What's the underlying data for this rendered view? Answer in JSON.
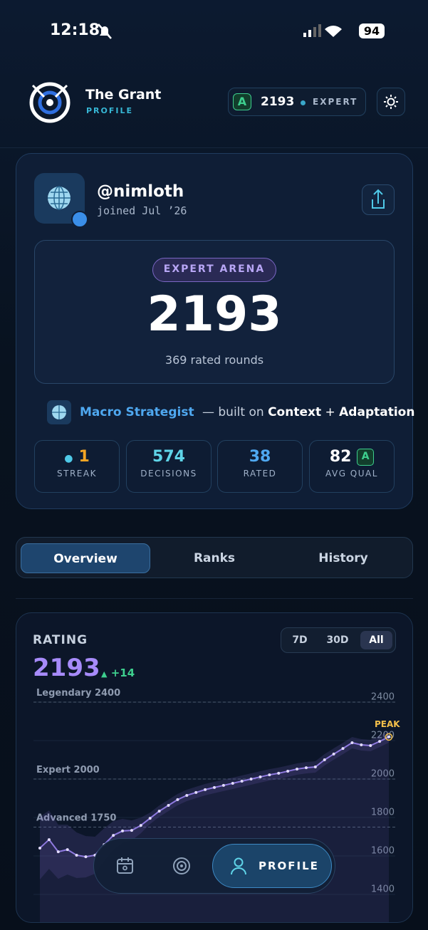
{
  "status_bar": {
    "time": "12:18",
    "battery": "94"
  },
  "header": {
    "title": "The Grant",
    "subtitle": "PROFILE",
    "grade": "A",
    "rating": "2193",
    "tier": "EXPERT"
  },
  "profile": {
    "handle": "@nimloth",
    "joined": "joined Jul ’26",
    "arena": "EXPERT ARENA",
    "rating": "2193",
    "rounds": "369 rated rounds",
    "archetype": "Macro Strategist",
    "built_on": "— built on",
    "trait_1": "Context",
    "plus": "+",
    "trait_2": "Adaptation",
    "stats": [
      {
        "value": "1",
        "label": "STREAK"
      },
      {
        "value": "574",
        "label": "DECISIONS"
      },
      {
        "value": "38",
        "label": "RATED"
      },
      {
        "value": "82",
        "grade": "A",
        "label": "AVG QUAL"
      }
    ]
  },
  "tabs": [
    "Overview",
    "Ranks",
    "History"
  ],
  "rating_chart": {
    "title": "RATING",
    "ranges": [
      "7D",
      "30D",
      "All"
    ],
    "current": "2193",
    "change": "+14",
    "peak_label": "PEAK",
    "values": [
      1615,
      1659,
      1596,
      1607,
      1578,
      1570,
      1578,
      1633,
      1681,
      1704,
      1707,
      1733,
      1770,
      1807,
      1837,
      1867,
      1889,
      1904,
      1919,
      1930,
      1941,
      1952,
      1963,
      1974,
      1985,
      1996,
      2004,
      2015,
      2026,
      2033,
      2037,
      2074,
      2104,
      2133,
      2163,
      2152,
      2148,
      2170,
      2193
    ],
    "ylim": [
      1400,
      2400
    ],
    "yticks": [
      1400,
      1600,
      1800,
      2000,
      2200,
      2400
    ],
    "reference_lines": [
      {
        "value": 2400,
        "label": "Legendary 2400"
      },
      {
        "value": 2000,
        "label": "Expert 2000"
      },
      {
        "value": 1750,
        "label": "Advanced 1750"
      }
    ]
  },
  "nav": {
    "active": "PROFILE"
  }
}
